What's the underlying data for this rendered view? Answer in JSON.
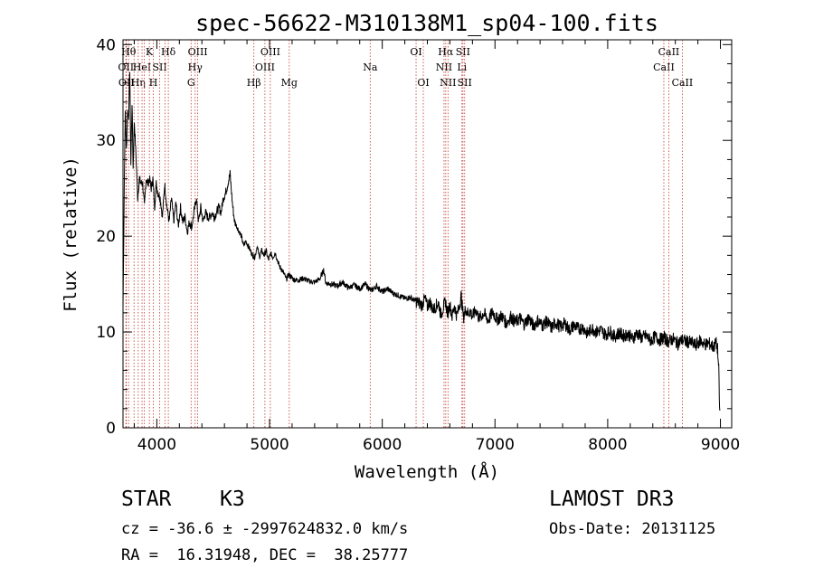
{
  "chart_data": {
    "type": "line",
    "title": "spec-56622-M310138M1_sp04-100.fits",
    "xlabel": "Wavelength (Å)",
    "ylabel": "Flux (relative)",
    "xlim": [
      3700,
      9100
    ],
    "ylim": [
      0,
      40.5
    ],
    "xticks": [
      4000,
      5000,
      6000,
      7000,
      8000,
      9000
    ],
    "yticks": [
      0,
      10,
      20,
      30,
      40
    ],
    "grid": false,
    "series": [
      {
        "name": "flux",
        "x": [
          3700,
          3712,
          3720,
          3730,
          3740,
          3750,
          3760,
          3770,
          3780,
          3790,
          3800,
          3815,
          3830,
          3845,
          3860,
          3875,
          3890,
          3905,
          3920,
          3935,
          3950,
          3965,
          3980,
          3995,
          4010,
          4030,
          4050,
          4070,
          4090,
          4110,
          4130,
          4150,
          4170,
          4190,
          4210,
          4230,
          4250,
          4270,
          4290,
          4310,
          4330,
          4350,
          4370,
          4390,
          4410,
          4430,
          4450,
          4470,
          4490,
          4510,
          4530,
          4550,
          4570,
          4590,
          4610,
          4630,
          4650,
          4670,
          4690,
          4710,
          4730,
          4750,
          4770,
          4790,
          4810,
          4830,
          4850,
          4870,
          4890,
          4910,
          4930,
          4950,
          4970,
          4990,
          5010,
          5030,
          5050,
          5070,
          5090,
          5110,
          5130,
          5150,
          5170,
          5190,
          5210,
          5250,
          5300,
          5350,
          5400,
          5450,
          5480,
          5500,
          5550,
          5600,
          5650,
          5700,
          5750,
          5800,
          5850,
          5900,
          5950,
          6000,
          6050,
          6100,
          6150,
          6200,
          6250,
          6300,
          6330,
          6350,
          6380,
          6400,
          6420,
          6450,
          6480,
          6500,
          6520,
          6540,
          6560,
          6580,
          6600,
          6620,
          6640,
          6660,
          6680,
          6700,
          6720,
          6740,
          6760,
          6780,
          6800,
          6830,
          6860,
          6900,
          6940,
          6980,
          7020,
          7060,
          7100,
          7140,
          7180,
          7220,
          7260,
          7300,
          7340,
          7380,
          7420,
          7460,
          7500,
          7540,
          7580,
          7620,
          7660,
          7700,
          7740,
          7780,
          7820,
          7860,
          7900,
          7940,
          7980,
          8020,
          8060,
          8100,
          8140,
          8180,
          8220,
          8260,
          8300,
          8340,
          8380,
          8420,
          8460,
          8500,
          8540,
          8580,
          8620,
          8660,
          8700,
          8740,
          8780,
          8820,
          8860,
          8900,
          8940,
          8960,
          8975,
          8985,
          8990,
          8995
        ],
        "y": [
          12.5,
          26.0,
          33.0,
          29.0,
          33.0,
          32.5,
          37.5,
          27.5,
          34.0,
          27.0,
          32.0,
          28.5,
          24.0,
          26.0,
          25.5,
          25.5,
          23.0,
          26.0,
          25.5,
          26.0,
          25.0,
          26.0,
          23.0,
          25.5,
          24.5,
          24.0,
          22.0,
          25.5,
          23.0,
          21.5,
          24.0,
          21.5,
          23.5,
          21.0,
          23.0,
          21.5,
          22.0,
          20.5,
          21.5,
          21.0,
          22.5,
          24.0,
          21.5,
          23.0,
          21.5,
          22.5,
          22.0,
          22.0,
          22.5,
          22.0,
          22.5,
          23.0,
          22.5,
          24.0,
          24.5,
          25.5,
          26.5,
          23.5,
          21.5,
          21.0,
          20.5,
          20.0,
          19.0,
          19.5,
          19.0,
          18.5,
          18.0,
          17.8,
          19.0,
          17.8,
          18.5,
          18.0,
          18.5,
          17.5,
          18.2,
          17.8,
          18.3,
          17.5,
          16.8,
          16.5,
          16.0,
          15.5,
          16.0,
          15.8,
          15.5,
          15.4,
          15.6,
          15.3,
          15.2,
          15.6,
          16.5,
          15.1,
          15.0,
          14.8,
          15.2,
          14.6,
          14.9,
          14.5,
          15.0,
          14.3,
          14.8,
          14.2,
          14.5,
          14.0,
          13.8,
          13.5,
          13.6,
          13.2,
          13.0,
          12.8,
          13.5,
          12.6,
          13.2,
          12.3,
          12.8,
          13.0,
          11.8,
          12.5,
          13.2,
          11.9,
          12.9,
          11.6,
          12.8,
          11.7,
          12.5,
          13.8,
          11.5,
          12.4,
          11.9,
          12.2,
          11.6,
          12.3,
          11.4,
          12.0,
          11.2,
          12.1,
          11.3,
          11.7,
          10.9,
          11.6,
          11.0,
          11.4,
          10.8,
          11.5,
          10.6,
          11.2,
          10.7,
          11.1,
          10.4,
          11.0,
          10.5,
          10.9,
          10.2,
          10.7,
          10.3,
          10.5,
          9.8,
          10.4,
          10.0,
          10.2,
          9.7,
          10.1,
          9.5,
          9.9,
          9.6,
          9.8,
          9.3,
          9.9,
          9.4,
          9.6,
          9.1,
          9.5,
          9.2,
          9.4,
          9.0,
          9.3,
          8.8,
          9.2,
          9.0,
          8.9,
          8.6,
          9.1,
          8.7,
          8.8,
          8.4,
          8.9,
          8.2,
          6.0,
          3.0,
          1.8
        ]
      }
    ],
    "lines": [
      {
        "x": 3726,
        "label": "OII",
        "row": 2
      },
      {
        "x": 3730,
        "label": "OII",
        "row": 3
      },
      {
        "x": 3750,
        "label": "Hθ",
        "row": 1
      },
      {
        "x": 3798,
        "label": "",
        "row": 0
      },
      {
        "x": 3835,
        "label": "Hη",
        "row": 3
      },
      {
        "x": 3869,
        "label": "HeI",
        "row": 2
      },
      {
        "x": 3889,
        "label": "",
        "row": 0
      },
      {
        "x": 3934,
        "label": "K",
        "row": 1
      },
      {
        "x": 3969,
        "label": "H",
        "row": 3
      },
      {
        "x": 4026,
        "label": "SII",
        "row": 2
      },
      {
        "x": 4072,
        "label": "",
        "row": 0
      },
      {
        "x": 4102,
        "label": "Hδ",
        "row": 1
      },
      {
        "x": 4304,
        "label": "G",
        "row": 3
      },
      {
        "x": 4340,
        "label": "Hγ",
        "row": 2
      },
      {
        "x": 4363,
        "label": "OIII",
        "row": 1
      },
      {
        "x": 4861,
        "label": "Hβ",
        "row": 3
      },
      {
        "x": 4959,
        "label": "OIII",
        "row": 2
      },
      {
        "x": 5007,
        "label": "OIII",
        "row": 1
      },
      {
        "x": 5175,
        "label": "Mg",
        "row": 3
      },
      {
        "x": 5893,
        "label": "Na",
        "row": 2
      },
      {
        "x": 6300,
        "label": "OI",
        "row": 1
      },
      {
        "x": 6364,
        "label": "OI",
        "row": 3
      },
      {
        "x": 6548,
        "label": "NII",
        "row": 2
      },
      {
        "x": 6563,
        "label": "Hα",
        "row": 1
      },
      {
        "x": 6583,
        "label": "NII",
        "row": 3
      },
      {
        "x": 6707,
        "label": "Li",
        "row": 2
      },
      {
        "x": 6716,
        "label": "SII",
        "row": 1
      },
      {
        "x": 6731,
        "label": "SII",
        "row": 3
      },
      {
        "x": 8498,
        "label": "CaII",
        "row": 2
      },
      {
        "x": 8542,
        "label": "CaII",
        "row": 1
      },
      {
        "x": 8662,
        "label": "CaII",
        "row": 3
      }
    ]
  },
  "footer": {
    "object_class": "STAR",
    "subclass": "K3",
    "cz_text": "cz = -36.6 ± -2997624832.0 km/s",
    "coords_text": "RA =  16.31948, DEC =  38.25777",
    "survey": "LAMOST DR3",
    "obs_date_text": "Obs-Date: 20131125"
  }
}
